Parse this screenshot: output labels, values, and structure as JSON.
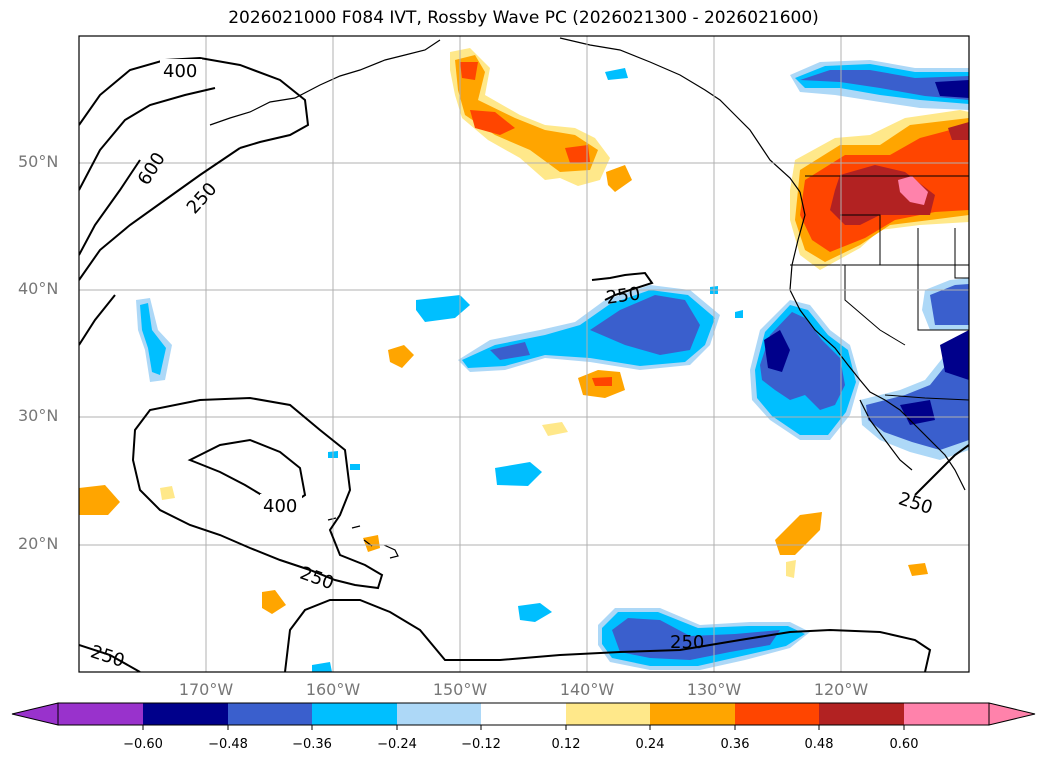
{
  "title": "2026021000 F084 IVT, Rossby Wave PC (2026021300 - 2026021600)",
  "lat_labels": [
    "50°N",
    "40°N",
    "30°N",
    "20°N"
  ],
  "lon_labels": [
    "170°W",
    "160°W",
    "150°W",
    "140°W",
    "130°W",
    "120°W"
  ],
  "contour_labels": [
    "400",
    "600",
    "250",
    "250",
    "400",
    "250",
    "250",
    "250",
    "250"
  ],
  "colorbar": {
    "tick_labels": [
      "−0.60",
      "−0.48",
      "−0.36",
      "−0.24",
      "−0.12",
      "0.12",
      "0.24",
      "0.36",
      "0.48",
      "0.60"
    ],
    "colors": [
      "#9932cc",
      "#00008b",
      "#3a5fcd",
      "#00bfff",
      "#add8f7",
      "#ffffff",
      "#ffe88a",
      "#ffa500",
      "#ff4500",
      "#b22222",
      "#ff82ab"
    ]
  },
  "colors": {
    "neg_dark": "#00008b",
    "neg_mid": "#3a5fcd",
    "neg_light": "#00bfff",
    "neg_pale": "#add8f7",
    "pos_pale": "#ffe88a",
    "pos_light": "#ffa500",
    "pos_mid": "#ff4500",
    "pos_dark": "#b22222",
    "pos_max": "#ff82ab"
  }
}
